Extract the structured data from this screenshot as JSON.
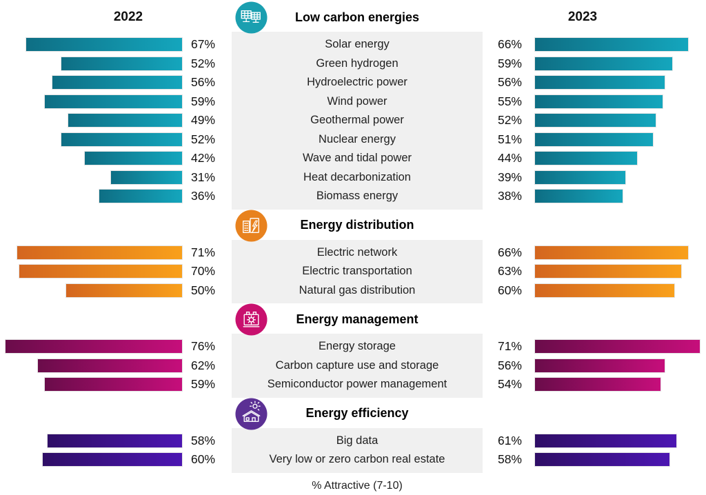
{
  "chart_data": {
    "type": "bar",
    "orientation": "horizontal-butterfly",
    "series_names": [
      "2022",
      "2023"
    ],
    "xlabel": "% Attractive (7-10)",
    "value_suffix": "%",
    "xlim": [
      0,
      80
    ],
    "legend_position": "column-headers",
    "grid": false,
    "groups": [
      {
        "title": "Low carbon energies",
        "icon": "solar-panels-icon",
        "accent": "#1a9fb0",
        "bar_start": "#0e6e84",
        "bar_end": "#14a6bd",
        "categories": [
          "Solar energy",
          "Green hydrogen",
          "Hydroelectric power",
          "Wind power",
          "Geothermal power",
          "Nuclear energy",
          "Wave and tidal power",
          "Heat decarbonization",
          "Biomass energy"
        ],
        "series": [
          {
            "name": "2022",
            "values": [
              67,
              52,
              56,
              59,
              49,
              52,
              42,
              31,
              36
            ]
          },
          {
            "name": "2023",
            "values": [
              66,
              59,
              56,
              55,
              52,
              51,
              44,
              39,
              38
            ]
          }
        ]
      },
      {
        "title": "Energy distribution",
        "icon": "buildings-bolt-icon",
        "accent": "#e8821e",
        "bar_start": "#d4661f",
        "bar_end": "#f9a01b",
        "categories": [
          "Electric network",
          "Electric transportation",
          "Natural gas distribution"
        ],
        "series": [
          {
            "name": "2022",
            "values": [
              71,
              70,
              50
            ]
          },
          {
            "name": "2023",
            "values": [
              66,
              63,
              60
            ]
          }
        ]
      },
      {
        "title": "Energy management",
        "icon": "battery-gear-icon",
        "accent": "#c8106e",
        "bar_start": "#6a0c4a",
        "bar_end": "#c60e7b",
        "categories": [
          "Energy storage",
          "Carbon capture use and storage",
          "Semiconductor power management"
        ],
        "series": [
          {
            "name": "2022",
            "values": [
              76,
              62,
              59
            ]
          },
          {
            "name": "2023",
            "values": [
              71,
              56,
              54
            ]
          }
        ]
      },
      {
        "title": "Energy efficiency",
        "icon": "house-sun-icon",
        "accent": "#5b3094",
        "bar_start": "#2f0e66",
        "bar_end": "#4c16b2",
        "categories": [
          "Big data",
          "Very low or zero carbon real estate"
        ],
        "series": [
          {
            "name": "2022",
            "values": [
              58,
              60
            ]
          },
          {
            "name": "2023",
            "values": [
              61,
              58
            ]
          }
        ]
      }
    ]
  }
}
